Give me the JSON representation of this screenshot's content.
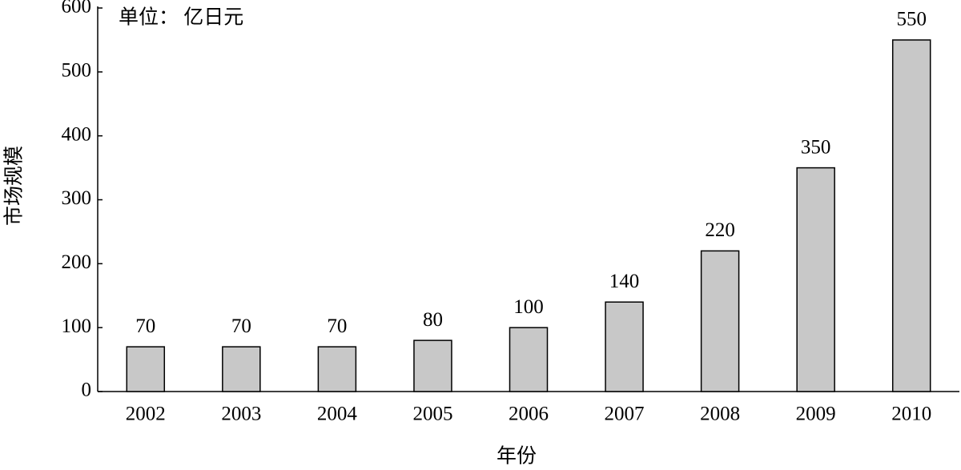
{
  "chart_data": {
    "type": "bar",
    "annotation": "单位： 亿日元",
    "x_label": "年份",
    "y_label": "市场规模",
    "categories": [
      "2002",
      "2003",
      "2004",
      "2005",
      "2006",
      "2007",
      "2008",
      "2009",
      "2010"
    ],
    "values": [
      70,
      70,
      70,
      80,
      100,
      140,
      220,
      350,
      550
    ],
    "color": "#c8c8c8",
    "ylim": [
      0,
      600
    ],
    "yticks": [
      0,
      100,
      200,
      300,
      400,
      500,
      600
    ],
    "grid": false
  }
}
